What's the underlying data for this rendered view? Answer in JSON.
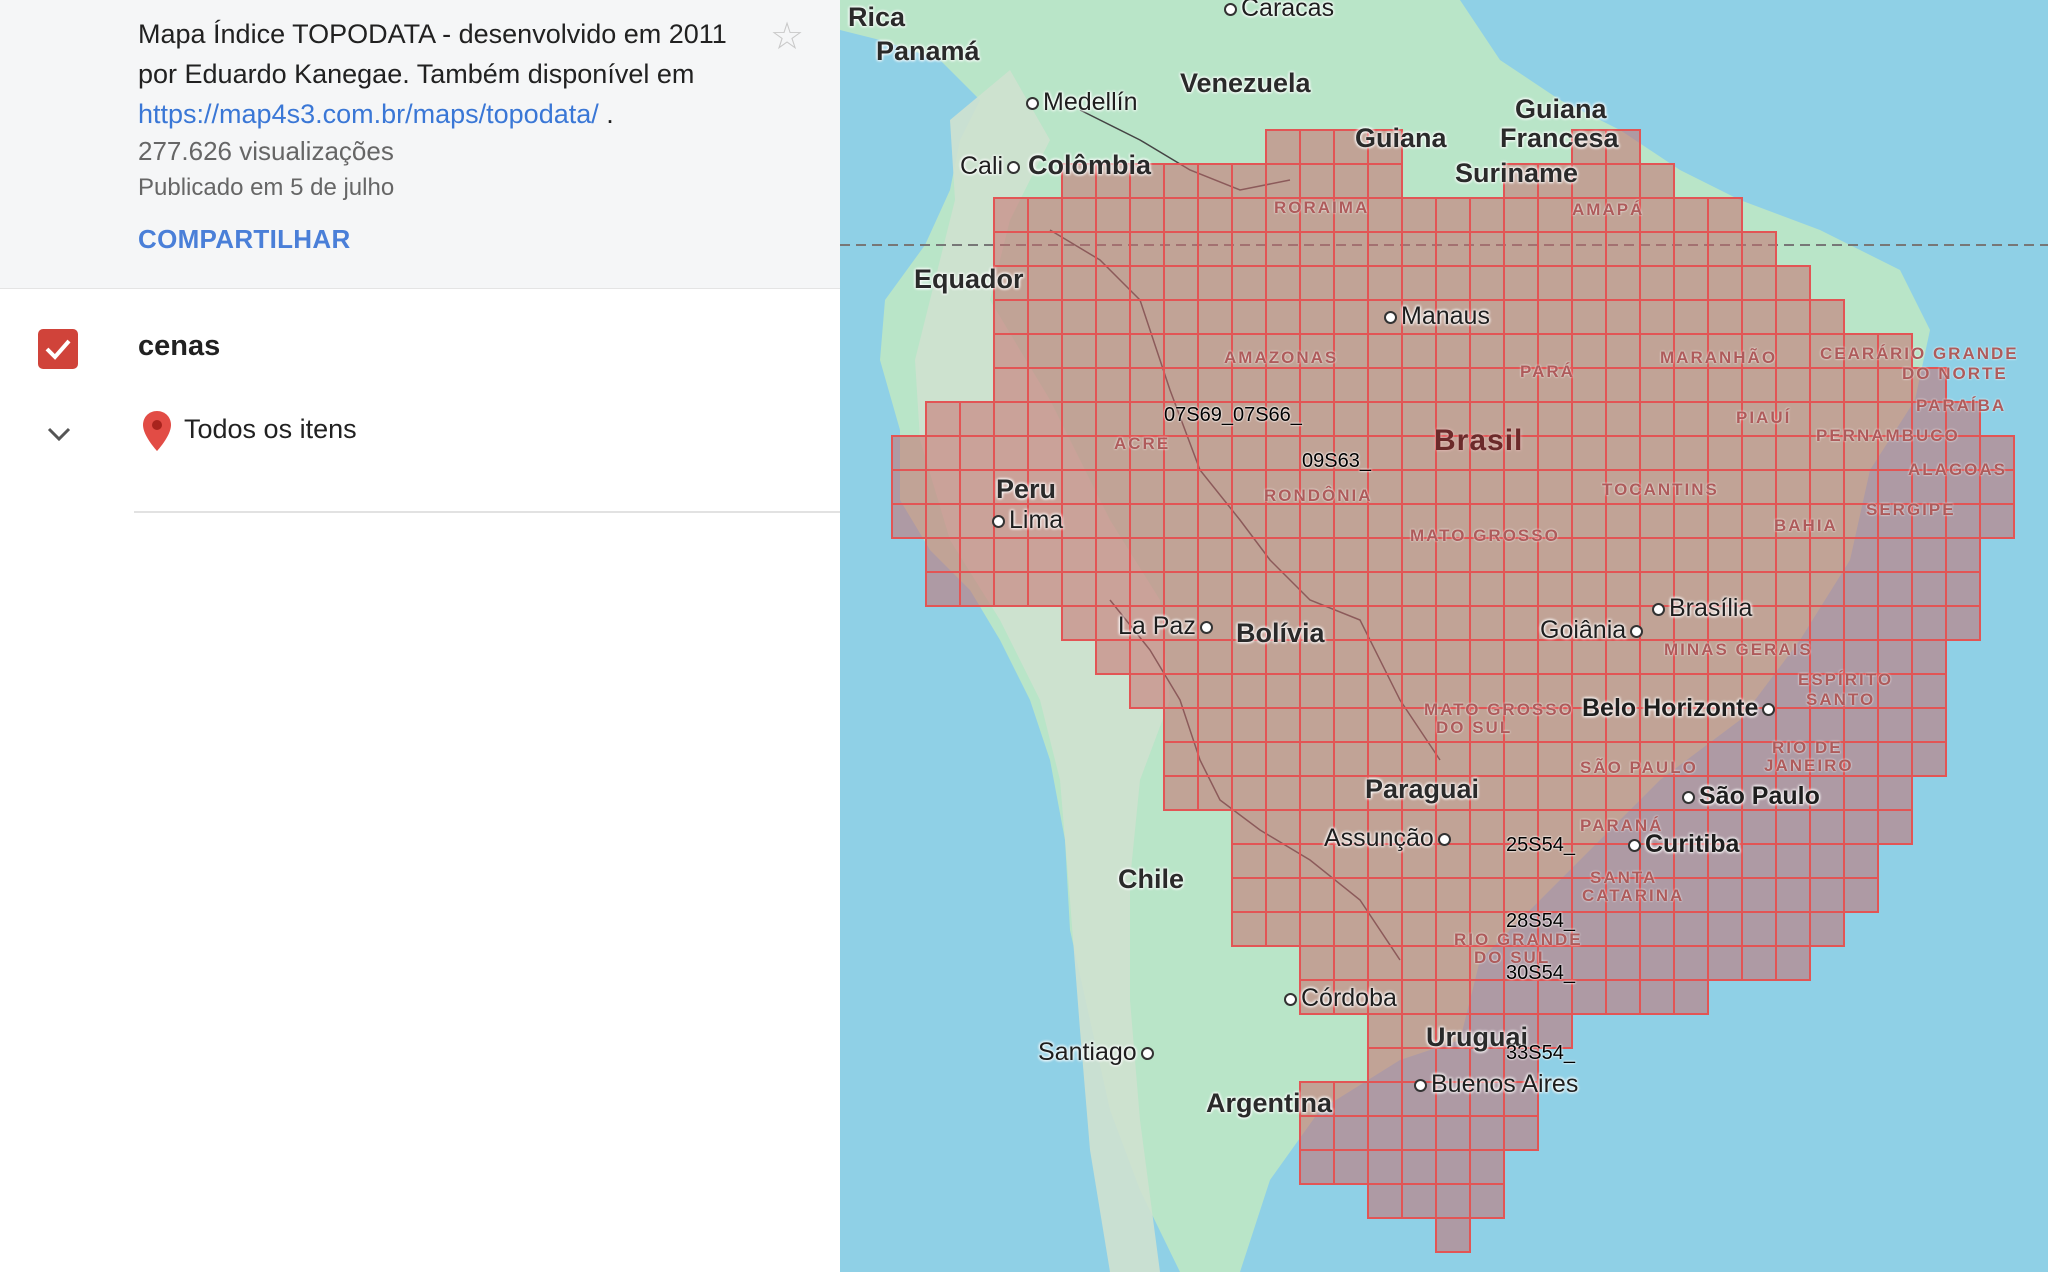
{
  "description": {
    "line1": "Mapa Índice TOPODATA - desenvolvido em 2011",
    "line2": "por Eduardo Kanegae. Também disponível em",
    "link": "https://map4s3.com.br/maps/topodata/",
    "link_suffix": " ."
  },
  "stats": {
    "views": "277.626 visualizações",
    "published": "Publicado em 5 de julho"
  },
  "share_label": "COMPARTILHAR",
  "layer": {
    "name": "cenas",
    "checked": true,
    "all_items_label": "Todos os itens"
  },
  "colors": {
    "accent": "#d0433a",
    "link": "#3a77d6",
    "tile_stroke": "#e25555",
    "water": "#8fd0e6",
    "land": "#b9e5c8"
  },
  "icons": [
    "star-icon",
    "checkbox-checked-icon",
    "chevron-down-icon",
    "map-pin-icon"
  ],
  "map": {
    "countries": {
      "costa_rica": "Rica",
      "panama": "Panamá",
      "venezuela": "Venezuela",
      "guyana": "Guiana",
      "french_guiana_1": "Guiana",
      "french_guiana_2": "Francesa",
      "suriname": "Suriname",
      "colombia": "Colômbia",
      "ecuador": "Equador",
      "peru": "Peru",
      "bolivia": "Bolívia",
      "paraguay": "Paraguai",
      "chile": "Chile",
      "uruguay": "Uruguai",
      "argentina": "Argentina",
      "brazil": "Brasil"
    },
    "cities": {
      "caracas": "Caracas",
      "medellin": "Medellín",
      "cali": "Cali",
      "manaus": "Manaus",
      "lima": "Lima",
      "la_paz": "La Paz",
      "brasilia": "Brasília",
      "goiania": "Goiânia",
      "belo_horizonte": "Belo Horizonte",
      "sao_paulo": "São Paulo",
      "curitiba": "Curitiba",
      "assuncao": "Assunção",
      "cordoba": "Córdoba",
      "santiago": "Santiago",
      "buenos_aires": "Buenos Aires"
    },
    "states": {
      "roraima": "RORAIMA",
      "amapa": "AMAPÁ",
      "amazonas": "AMAZONAS",
      "para": "PARÁ",
      "maranhao": "MARANHÃO",
      "ceara": "CEARÁ",
      "rn1": "RIO GRANDE",
      "rn2": "DO NORTE",
      "paraiba": "PARAÍBA",
      "piaui": "PIAUÍ",
      "pernambuco": "PERNAMBUCO",
      "alagoas": "ALAGOAS",
      "acre": "ACRE",
      "rondonia": "RONDÔNIA",
      "tocantins": "TOCANTINS",
      "sergipe": "SERGIPE",
      "bahia": "BAHIA",
      "mato_grosso": "MATO GROSSO",
      "minas_gerais": "MINAS GERAIS",
      "es1": "ESPÍRITO",
      "es2": "SANTO",
      "ms1": "MATO GROSSO",
      "ms2": "DO SUL",
      "rj1": "RIO DE",
      "rj2": "JANEIRO",
      "sao_paulo": "SÃO PAULO",
      "parana": "PARANÁ",
      "sc1": "SANTA",
      "sc2": "CATARINA",
      "rs1": "RIO GRANDE",
      "rs2": "DO SUL"
    },
    "tile_labels": {
      "t1": "07S69_07S66_",
      "t2": "09S63_",
      "t3": "25S54_",
      "t4": "28S54_",
      "t5": "30S54_",
      "t6": "33S54_"
    }
  }
}
